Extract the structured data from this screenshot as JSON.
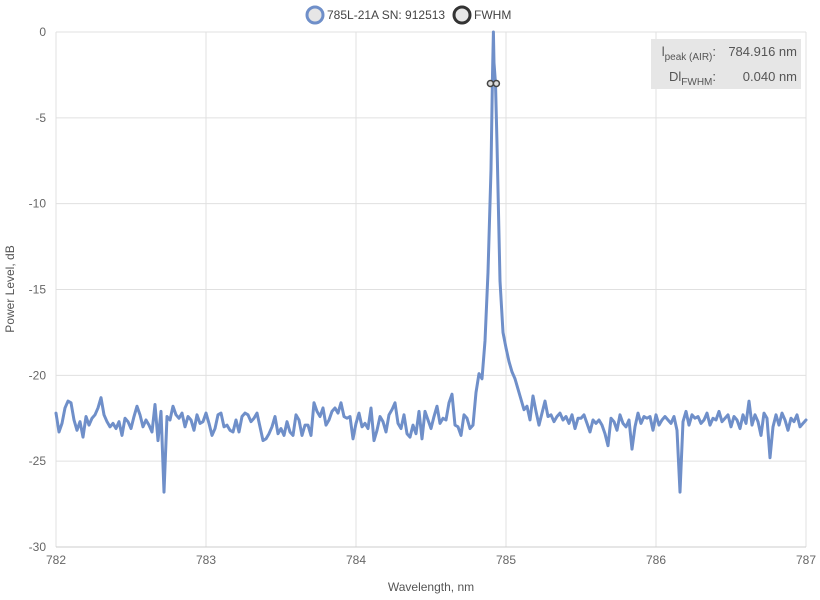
{
  "chart_data": {
    "type": "line",
    "xlabel": "Wavelength, nm",
    "ylabel": "Power Level, dB",
    "xlim": [
      782,
      787
    ],
    "ylim": [
      -30,
      0
    ],
    "x_ticks": [
      782,
      783,
      784,
      785,
      786,
      787
    ],
    "y_ticks": [
      0,
      -5,
      -10,
      -15,
      -20,
      -25,
      -30
    ],
    "x_tick_labels": [
      "782",
      "783",
      "784",
      "785",
      "786",
      "787"
    ],
    "y_tick_labels": [
      "0",
      "-5",
      "-10",
      "-15",
      "-20",
      "-25",
      "-30"
    ],
    "grid": true,
    "legend_position": "top-center",
    "legend": [
      {
        "label": "785L-21A SN: 912513",
        "color": "#6f8fc9",
        "fill": "#e6e6e6"
      },
      {
        "label": "FWHM",
        "color": "#333333",
        "fill": "#e6e6e6"
      }
    ],
    "series": [
      {
        "name": "785L-21A SN: 912513",
        "color": "#6f8fc9",
        "points": [
          [
            782.0,
            -22.2
          ],
          [
            782.02,
            -23.3
          ],
          [
            782.04,
            -22.8
          ],
          [
            782.06,
            -21.9
          ],
          [
            782.08,
            -21.5
          ],
          [
            782.1,
            -21.6
          ],
          [
            782.12,
            -22.6
          ],
          [
            782.14,
            -23.2
          ],
          [
            782.16,
            -22.7
          ],
          [
            782.18,
            -23.6
          ],
          [
            782.2,
            -22.4
          ],
          [
            782.22,
            -22.9
          ],
          [
            782.24,
            -22.5
          ],
          [
            782.26,
            -22.3
          ],
          [
            782.28,
            -21.9
          ],
          [
            782.3,
            -21.3
          ],
          [
            782.32,
            -22.3
          ],
          [
            782.34,
            -22.7
          ],
          [
            782.36,
            -23.0
          ],
          [
            782.38,
            -22.8
          ],
          [
            782.4,
            -23.1
          ],
          [
            782.42,
            -22.7
          ],
          [
            782.44,
            -23.5
          ],
          [
            782.46,
            -22.5
          ],
          [
            782.48,
            -22.7
          ],
          [
            782.5,
            -23.1
          ],
          [
            782.52,
            -22.4
          ],
          [
            782.54,
            -21.8
          ],
          [
            782.56,
            -22.3
          ],
          [
            782.58,
            -23.0
          ],
          [
            782.6,
            -22.6
          ],
          [
            782.62,
            -22.9
          ],
          [
            782.64,
            -23.3
          ],
          [
            782.66,
            -21.7
          ],
          [
            782.68,
            -23.8
          ],
          [
            782.7,
            -22.1
          ],
          [
            782.72,
            -26.8
          ],
          [
            782.74,
            -22.4
          ],
          [
            782.76,
            -22.6
          ],
          [
            782.78,
            -21.8
          ],
          [
            782.8,
            -22.3
          ],
          [
            782.82,
            -22.5
          ],
          [
            782.84,
            -22.2
          ],
          [
            782.86,
            -23.0
          ],
          [
            782.88,
            -22.4
          ],
          [
            782.9,
            -22.6
          ],
          [
            782.92,
            -23.2
          ],
          [
            782.94,
            -22.3
          ],
          [
            782.96,
            -22.8
          ],
          [
            782.98,
            -22.7
          ],
          [
            783.0,
            -22.2
          ],
          [
            783.02,
            -22.8
          ],
          [
            783.04,
            -23.5
          ],
          [
            783.06,
            -23.1
          ],
          [
            783.08,
            -22.3
          ],
          [
            783.1,
            -22.2
          ],
          [
            783.12,
            -23.0
          ],
          [
            783.14,
            -22.9
          ],
          [
            783.16,
            -23.2
          ],
          [
            783.18,
            -23.3
          ],
          [
            783.2,
            -22.6
          ],
          [
            783.22,
            -23.3
          ],
          [
            783.24,
            -22.4
          ],
          [
            783.26,
            -22.2
          ],
          [
            783.28,
            -22.3
          ],
          [
            783.3,
            -22.7
          ],
          [
            783.32,
            -22.5
          ],
          [
            783.34,
            -22.2
          ],
          [
            783.36,
            -23.0
          ],
          [
            783.38,
            -23.8
          ],
          [
            783.4,
            -23.7
          ],
          [
            783.42,
            -23.4
          ],
          [
            783.44,
            -23.0
          ],
          [
            783.46,
            -22.4
          ],
          [
            783.48,
            -23.4
          ],
          [
            783.5,
            -23.1
          ],
          [
            783.52,
            -23.5
          ],
          [
            783.54,
            -22.7
          ],
          [
            783.56,
            -23.3
          ],
          [
            783.58,
            -23.5
          ],
          [
            783.6,
            -22.3
          ],
          [
            783.62,
            -22.6
          ],
          [
            783.64,
            -23.5
          ],
          [
            783.66,
            -22.9
          ],
          [
            783.68,
            -22.9
          ],
          [
            783.7,
            -23.5
          ],
          [
            783.72,
            -21.6
          ],
          [
            783.74,
            -22.1
          ],
          [
            783.76,
            -22.4
          ],
          [
            783.78,
            -21.9
          ],
          [
            783.8,
            -22.9
          ],
          [
            783.82,
            -22.6
          ],
          [
            783.84,
            -22.1
          ],
          [
            783.86,
            -21.9
          ],
          [
            783.88,
            -22.2
          ],
          [
            783.9,
            -21.6
          ],
          [
            783.92,
            -22.4
          ],
          [
            783.94,
            -22.5
          ],
          [
            783.96,
            -22.4
          ],
          [
            783.98,
            -23.7
          ],
          [
            784.0,
            -22.8
          ],
          [
            784.02,
            -22.2
          ],
          [
            784.04,
            -23.0
          ],
          [
            784.06,
            -22.8
          ],
          [
            784.08,
            -23.1
          ],
          [
            784.1,
            -21.9
          ],
          [
            784.12,
            -23.8
          ],
          [
            784.14,
            -23.2
          ],
          [
            784.16,
            -22.4
          ],
          [
            784.18,
            -22.7
          ],
          [
            784.2,
            -23.3
          ],
          [
            784.22,
            -22.3
          ],
          [
            784.24,
            -22.0
          ],
          [
            784.26,
            -21.6
          ],
          [
            784.28,
            -22.8
          ],
          [
            784.3,
            -23.1
          ],
          [
            784.32,
            -22.3
          ],
          [
            784.34,
            -23.4
          ],
          [
            784.36,
            -23.6
          ],
          [
            784.38,
            -22.9
          ],
          [
            784.4,
            -23.4
          ],
          [
            784.42,
            -22.1
          ],
          [
            784.44,
            -23.7
          ],
          [
            784.46,
            -22.1
          ],
          [
            784.48,
            -22.6
          ],
          [
            784.5,
            -23.1
          ],
          [
            784.52,
            -22.4
          ],
          [
            784.54,
            -21.8
          ],
          [
            784.56,
            -22.8
          ],
          [
            784.58,
            -22.5
          ],
          [
            784.6,
            -22.6
          ],
          [
            784.62,
            -21.6
          ],
          [
            784.64,
            -21.1
          ],
          [
            784.66,
            -22.9
          ],
          [
            784.68,
            -23.0
          ],
          [
            784.7,
            -23.5
          ],
          [
            784.72,
            -22.3
          ],
          [
            784.74,
            -22.5
          ],
          [
            784.76,
            -23.1
          ],
          [
            784.78,
            -22.9
          ],
          [
            784.8,
            -21.0
          ],
          [
            784.82,
            -19.9
          ],
          [
            784.84,
            -20.2
          ],
          [
            784.86,
            -18.0
          ],
          [
            784.88,
            -14.0
          ],
          [
            784.9,
            -8.0
          ],
          [
            784.91,
            -2.5
          ],
          [
            784.916,
            0.0
          ],
          [
            784.92,
            -1.8
          ],
          [
            784.93,
            -3.0
          ],
          [
            784.94,
            -6.5
          ],
          [
            784.95,
            -10.5
          ],
          [
            784.96,
            -14.5
          ],
          [
            784.98,
            -17.5
          ],
          [
            785.0,
            -18.4
          ],
          [
            785.02,
            -19.2
          ],
          [
            785.04,
            -19.8
          ],
          [
            785.06,
            -20.2
          ],
          [
            785.08,
            -20.8
          ],
          [
            785.1,
            -21.4
          ],
          [
            785.12,
            -22.0
          ],
          [
            785.14,
            -21.8
          ],
          [
            785.16,
            -22.6
          ],
          [
            785.18,
            -21.2
          ],
          [
            785.2,
            -22.1
          ],
          [
            785.22,
            -22.9
          ],
          [
            785.24,
            -22.2
          ],
          [
            785.26,
            -21.5
          ],
          [
            785.28,
            -22.4
          ],
          [
            785.3,
            -22.3
          ],
          [
            785.32,
            -22.7
          ],
          [
            785.34,
            -22.4
          ],
          [
            785.36,
            -22.2
          ],
          [
            785.38,
            -22.6
          ],
          [
            785.4,
            -22.4
          ],
          [
            785.42,
            -22.8
          ],
          [
            785.44,
            -22.3
          ],
          [
            785.46,
            -23.1
          ],
          [
            785.48,
            -22.5
          ],
          [
            785.5,
            -22.5
          ],
          [
            785.52,
            -22.3
          ],
          [
            785.54,
            -22.8
          ],
          [
            785.56,
            -23.3
          ],
          [
            785.58,
            -22.6
          ],
          [
            785.6,
            -22.8
          ],
          [
            785.62,
            -22.6
          ],
          [
            785.64,
            -22.9
          ],
          [
            785.66,
            -23.4
          ],
          [
            785.68,
            -24.1
          ],
          [
            785.7,
            -22.5
          ],
          [
            785.72,
            -22.7
          ],
          [
            785.74,
            -23.2
          ],
          [
            785.76,
            -22.3
          ],
          [
            785.78,
            -22.8
          ],
          [
            785.8,
            -23.0
          ],
          [
            785.82,
            -22.6
          ],
          [
            785.84,
            -24.3
          ],
          [
            785.86,
            -23.0
          ],
          [
            785.88,
            -22.2
          ],
          [
            785.9,
            -22.8
          ],
          [
            785.92,
            -22.4
          ],
          [
            785.94,
            -22.5
          ],
          [
            785.96,
            -22.4
          ],
          [
            785.98,
            -23.2
          ],
          [
            786.0,
            -22.3
          ],
          [
            786.02,
            -22.9
          ],
          [
            786.04,
            -22.6
          ],
          [
            786.06,
            -22.4
          ],
          [
            786.08,
            -22.6
          ],
          [
            786.1,
            -22.8
          ],
          [
            786.12,
            -22.4
          ],
          [
            786.14,
            -23.2
          ],
          [
            786.16,
            -26.8
          ],
          [
            786.18,
            -22.7
          ],
          [
            786.2,
            -22.1
          ],
          [
            786.22,
            -22.9
          ],
          [
            786.24,
            -22.3
          ],
          [
            786.26,
            -22.5
          ],
          [
            786.28,
            -22.4
          ],
          [
            786.3,
            -22.8
          ],
          [
            786.32,
            -22.6
          ],
          [
            786.34,
            -22.2
          ],
          [
            786.36,
            -22.9
          ],
          [
            786.38,
            -22.5
          ],
          [
            786.4,
            -22.6
          ],
          [
            786.42,
            -22.1
          ],
          [
            786.44,
            -22.7
          ],
          [
            786.46,
            -22.5
          ],
          [
            786.48,
            -22.3
          ],
          [
            786.5,
            -23.0
          ],
          [
            786.52,
            -22.4
          ],
          [
            786.54,
            -22.6
          ],
          [
            786.56,
            -23.1
          ],
          [
            786.58,
            -22.3
          ],
          [
            786.6,
            -22.8
          ],
          [
            786.62,
            -21.5
          ],
          [
            786.64,
            -22.9
          ],
          [
            786.66,
            -22.3
          ],
          [
            786.68,
            -22.7
          ],
          [
            786.7,
            -23.5
          ],
          [
            786.72,
            -22.2
          ],
          [
            786.74,
            -22.5
          ],
          [
            786.76,
            -24.8
          ],
          [
            786.78,
            -23.0
          ],
          [
            786.8,
            -22.3
          ],
          [
            786.82,
            -22.9
          ],
          [
            786.84,
            -22.2
          ],
          [
            786.86,
            -22.6
          ],
          [
            786.88,
            -23.2
          ],
          [
            786.9,
            -22.5
          ],
          [
            786.92,
            -22.7
          ],
          [
            786.94,
            -22.3
          ],
          [
            786.96,
            -23.0
          ],
          [
            786.98,
            -22.8
          ],
          [
            787.0,
            -22.6
          ]
        ]
      }
    ],
    "fwhm_markers": [
      {
        "x": 784.896,
        "y": -3.0
      },
      {
        "x": 784.936,
        "y": -3.0
      }
    ],
    "info_box": {
      "row1_prefix": "l",
      "row1_sub": "peak (AIR)",
      "row1_colon": ":",
      "row1_value": "784.916 nm",
      "row2_prefix": "Dl",
      "row2_sub": "FWHM",
      "row2_colon": ":",
      "row2_value": "0.040 nm"
    }
  },
  "colors": {
    "line": "#6f8fc9",
    "grid": "#e0e0e0",
    "info_bg": "#e6e6e6"
  }
}
